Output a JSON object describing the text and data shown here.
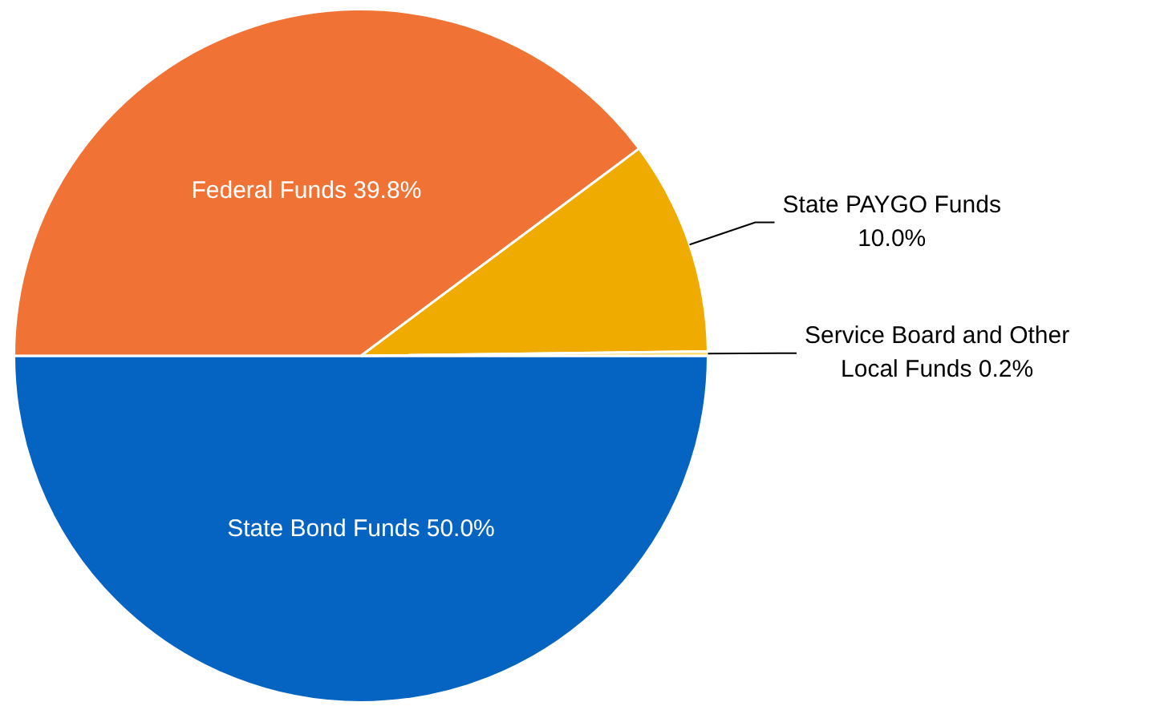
{
  "chart_data": {
    "type": "pie",
    "categories": [
      "State Bond Funds",
      "Federal Funds",
      "State PAYGO Funds",
      "Service Board and Other Local Funds"
    ],
    "values": [
      50.0,
      39.8,
      10.0,
      0.2
    ],
    "value_labels": [
      "50.0%",
      "39.8%",
      "10.0%",
      "0.2%"
    ],
    "colors": [
      "#0563c1",
      "#f07235",
      "#f0ab00",
      "#ffd966"
    ],
    "legend": false
  }
}
